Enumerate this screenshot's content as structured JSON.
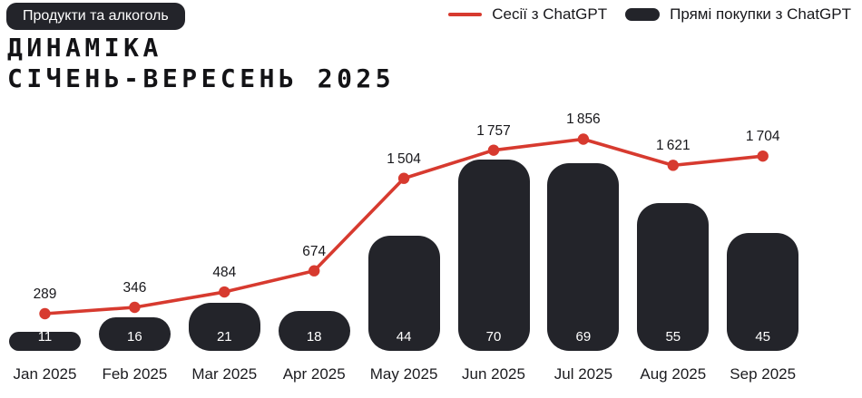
{
  "badge": {
    "label": "Продукти та алкоголь"
  },
  "title": {
    "line1": "ДИНАМІКА",
    "line2": "СІЧЕНЬ-ВЕРЕСЕНЬ 2025"
  },
  "legend": {
    "sessions_label": "Сесії з ChatGPT",
    "purchases_label": "Прямі покупки з ChatGPT"
  },
  "colors": {
    "accent_red": "#D73A2F",
    "dark": "#23242A",
    "text": "#17171B",
    "background": "#FFFFFF"
  },
  "chart_data": {
    "type": "combo",
    "categories": [
      "Jan 2025",
      "Feb 2025",
      "Mar 2025",
      "Apr 2025",
      "May 2025",
      "Jun 2025",
      "Jul 2025",
      "Aug 2025",
      "Sep 2025"
    ],
    "series": [
      {
        "name": "Сесії з ChatGPT",
        "type": "line",
        "color": "#D73A2F",
        "values": [
          289,
          346,
          484,
          674,
          1504,
          1757,
          1856,
          1621,
          1704
        ],
        "point_markers": true,
        "value_labels": "above points, thousands separated by thin space"
      },
      {
        "name": "Прямі покупки з ChatGPT",
        "type": "bar",
        "color": "#23242A",
        "values": [
          11,
          16,
          21,
          18,
          44,
          70,
          69,
          55,
          45
        ],
        "value_labels": "white, inside bar near bottom",
        "bar_style": "rounded pill corners"
      }
    ],
    "title": "ДИНАМІКА СІЧЕНЬ-ВЕРЕСЕНЬ 2025",
    "xlabel": "",
    "ylabel": "",
    "grid": false,
    "axes": "hidden",
    "legend_position": "top-right"
  }
}
